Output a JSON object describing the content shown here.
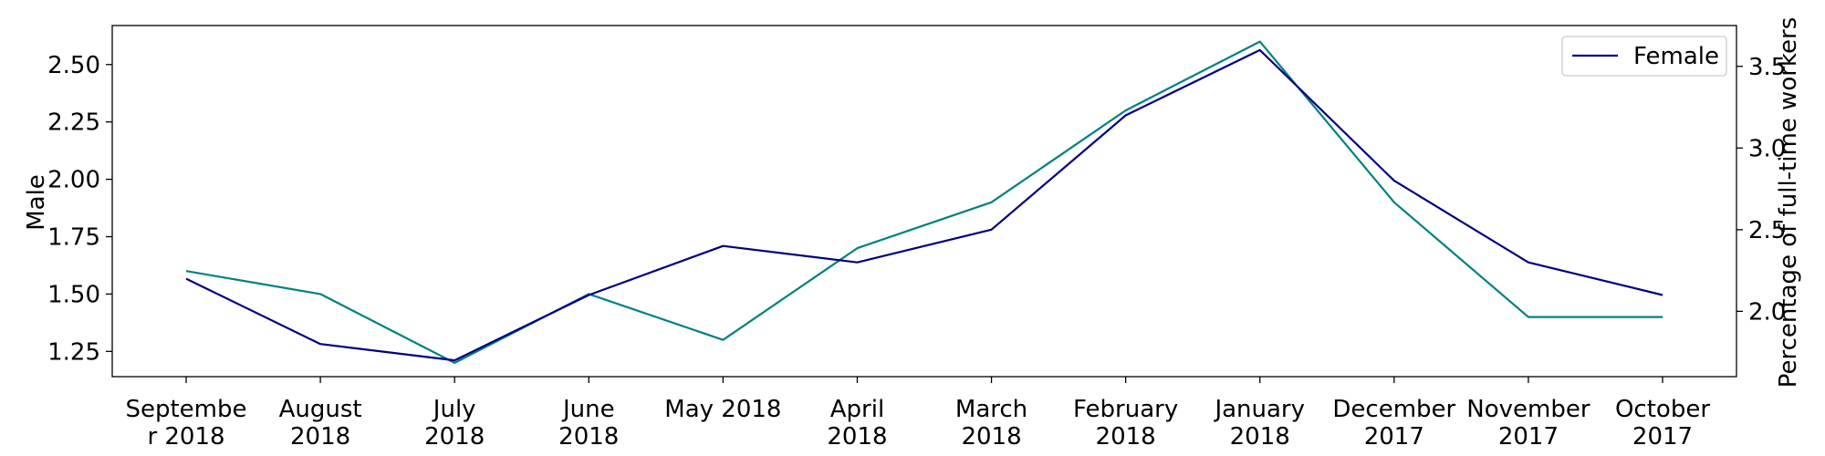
{
  "chart_data": {
    "type": "line",
    "categories": [
      [
        "Septembe",
        "r 2018"
      ],
      [
        "August",
        "2018"
      ],
      [
        "July",
        "2018"
      ],
      [
        "June",
        "2018"
      ],
      [
        "May 2018"
      ],
      [
        "April",
        "2018"
      ],
      [
        "March",
        "2018"
      ],
      [
        "February",
        "2018"
      ],
      [
        "January",
        "2018"
      ],
      [
        "December",
        "2017"
      ],
      [
        "November",
        "2017"
      ],
      [
        "October",
        "2017"
      ]
    ],
    "left_axis": {
      "label": "Male",
      "ylim": [
        1.14,
        2.67
      ],
      "ticks": [
        1.25,
        1.5,
        1.75,
        2.0,
        2.25,
        2.5
      ],
      "tick_labels": [
        "1.25",
        "1.50",
        "1.75",
        "2.00",
        "2.25",
        "2.50"
      ]
    },
    "right_axis": {
      "label": "Percentage of full-time workers",
      "ylim": [
        1.6,
        3.75
      ],
      "ticks": [
        2.0,
        2.5,
        3.0,
        3.5
      ],
      "tick_labels": [
        "2.0",
        "2.5",
        "3.0",
        "3.5"
      ]
    },
    "series": [
      {
        "axis": "left",
        "color": "#008080",
        "values": [
          1.6,
          1.5,
          1.2,
          1.5,
          1.3,
          1.7,
          1.9,
          2.3,
          2.6,
          1.9,
          1.4,
          1.4
        ]
      },
      {
        "name": "Female",
        "axis": "right",
        "color": "#000080",
        "values": [
          2.2,
          1.8,
          1.7,
          2.1,
          2.4,
          2.3,
          2.5,
          3.2,
          3.6,
          2.8,
          2.3,
          2.1
        ]
      }
    ],
    "legend": {
      "placement": "top-right",
      "entries": [
        "Female"
      ]
    },
    "grid": false
  }
}
